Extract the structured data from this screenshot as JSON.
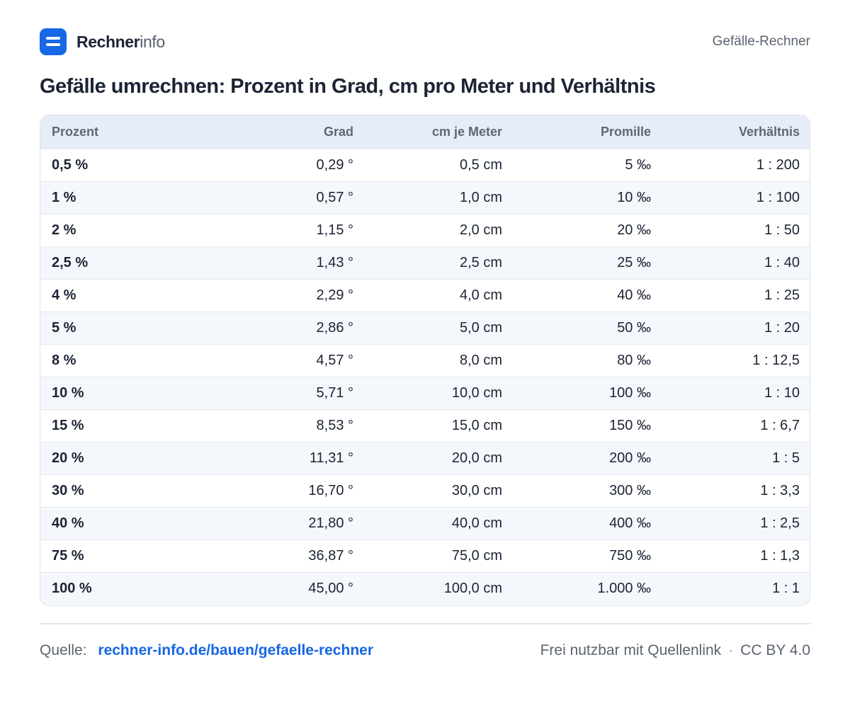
{
  "brand": {
    "name_bold": "Rechner",
    "name_light": "info",
    "icon": "logo-icon",
    "color": "#1767e6"
  },
  "header": {
    "right": "Gefälle-Rechner"
  },
  "title": "Gefälle umrechnen: Prozent in Grad, cm pro Meter und Verhältnis",
  "table": {
    "headers": [
      "Prozent",
      "Grad",
      "cm je Meter",
      "Promille",
      "Verhältnis"
    ],
    "rows": [
      [
        "0,5 %",
        "0,29 °",
        "0,5 cm",
        "5 ‰",
        "1 : 200"
      ],
      [
        "1 %",
        "0,57 °",
        "1,0 cm",
        "10 ‰",
        "1 : 100"
      ],
      [
        "2 %",
        "1,15 °",
        "2,0 cm",
        "20 ‰",
        "1 : 50"
      ],
      [
        "2,5 %",
        "1,43 °",
        "2,5 cm",
        "25 ‰",
        "1 : 40"
      ],
      [
        "4 %",
        "2,29 °",
        "4,0 cm",
        "40 ‰",
        "1 : 25"
      ],
      [
        "5 %",
        "2,86 °",
        "5,0 cm",
        "50 ‰",
        "1 : 20"
      ],
      [
        "8 %",
        "4,57 °",
        "8,0 cm",
        "80 ‰",
        "1 : 12,5"
      ],
      [
        "10 %",
        "5,71 °",
        "10,0 cm",
        "100 ‰",
        "1 : 10"
      ],
      [
        "15 %",
        "8,53 °",
        "15,0 cm",
        "150 ‰",
        "1 : 6,7"
      ],
      [
        "20 %",
        "11,31 °",
        "20,0 cm",
        "200 ‰",
        "1 : 5"
      ],
      [
        "30 %",
        "16,70 °",
        "30,0 cm",
        "300 ‰",
        "1 : 3,3"
      ],
      [
        "40 %",
        "21,80 °",
        "40,0 cm",
        "400 ‰",
        "1 : 2,5"
      ],
      [
        "75 %",
        "36,87 °",
        "75,0 cm",
        "750 ‰",
        "1 : 1,3"
      ],
      [
        "100 %",
        "45,00 °",
        "100,0 cm",
        "1.000 ‰",
        "1 : 1"
      ]
    ]
  },
  "footer": {
    "source_label": "Quelle:",
    "source_link": "rechner-info.de/bauen/gefaelle-rechner",
    "license_text": "Frei nutzbar mit Quellenlink",
    "separator": "·",
    "license": "CC BY 4.0"
  }
}
